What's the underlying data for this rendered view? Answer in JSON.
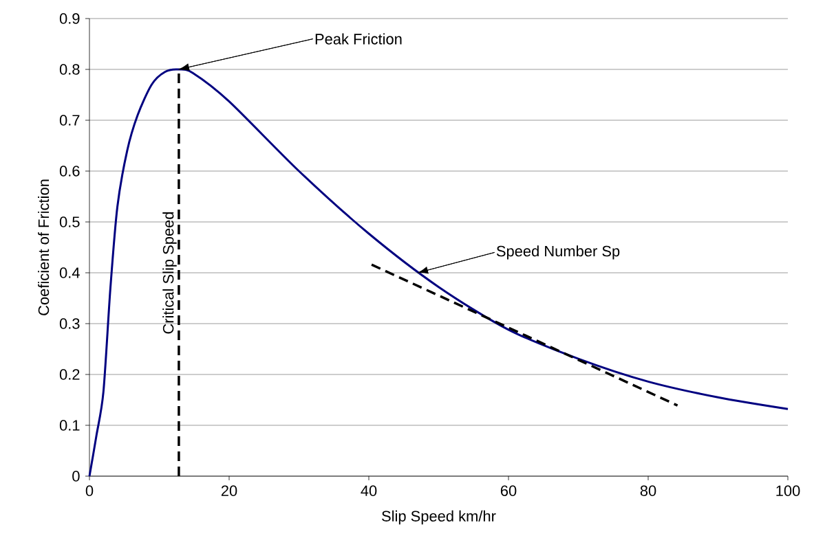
{
  "chart_data": {
    "type": "line",
    "xlabel": "Slip Speed km/hr",
    "ylabel": "Coeficient of Friction",
    "xlim": [
      0,
      100
    ],
    "ylim": [
      0,
      0.9
    ],
    "xticks": [
      0,
      20,
      40,
      60,
      80,
      100
    ],
    "yticks": [
      0,
      0.1,
      0.2,
      0.3,
      0.4,
      0.5,
      0.6,
      0.7,
      0.8,
      0.9
    ],
    "grid": "y",
    "series": [
      {
        "color": "#000080",
        "line_style": "solid",
        "x": [
          0,
          1,
          2,
          3,
          4,
          5.4,
          6.9,
          8.9,
          10.8,
          12.8,
          14.8,
          20,
          30,
          40,
          50,
          60,
          70,
          80,
          90,
          100
        ],
        "values": [
          0,
          0.08,
          0.166,
          0.37,
          0.53,
          0.64,
          0.71,
          0.77,
          0.795,
          0.8,
          0.793,
          0.737,
          0.6,
          0.477,
          0.372,
          0.288,
          0.231,
          0.186,
          0.155,
          0.132
        ]
      },
      {
        "name": "Critical Slip Speed",
        "color": "#000000",
        "line_style": "dashed",
        "x": [
          12.8,
          12.8
        ],
        "values": [
          0,
          0.8
        ]
      },
      {
        "color": "#000000",
        "line_style": "dashed",
        "x": [
          40.4,
          84.2
        ],
        "values": [
          0.416,
          0.139
        ]
      }
    ],
    "annotations": [
      {
        "text": "Peak Friction",
        "x": 12.8,
        "y": 0.8
      },
      {
        "text": "Speed Number Sp",
        "x": 47,
        "y": 0.4
      }
    ]
  }
}
